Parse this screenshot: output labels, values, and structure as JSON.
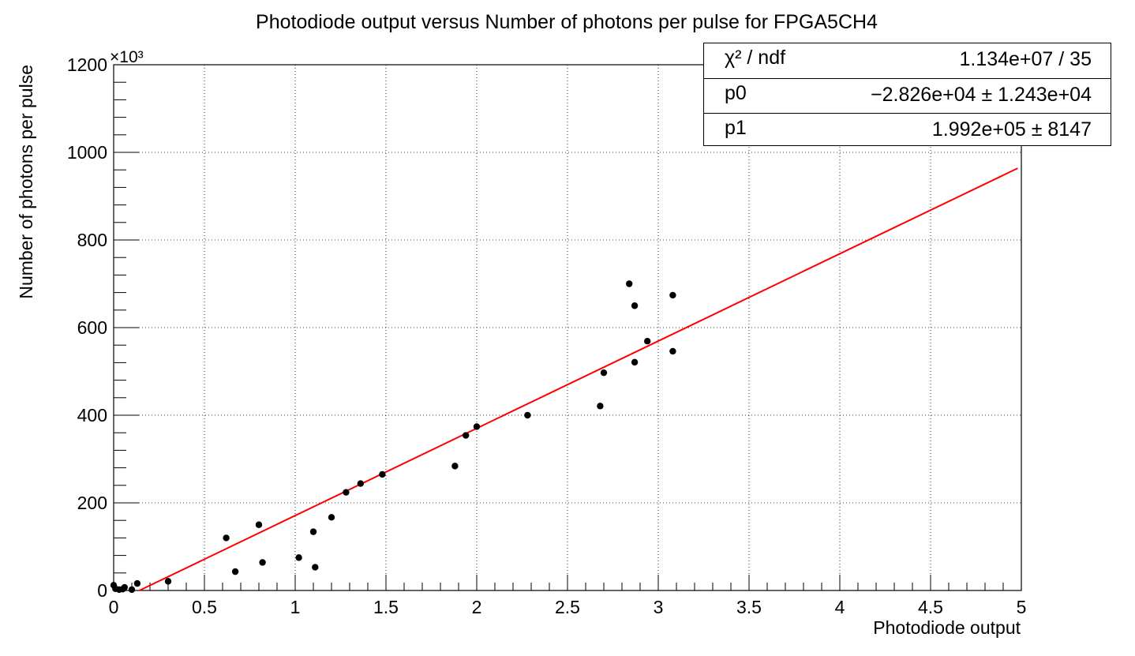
{
  "chart_data": {
    "type": "scatter",
    "title": "Photodiode output versus Number of photons per pulse for FPGA5CH4",
    "xlabel": "Photodiode output",
    "ylabel": "Number of photons per pulse",
    "y_exponent": "×10³",
    "xlim": [
      0,
      5
    ],
    "ylim": [
      0,
      1200
    ],
    "x_ticks": [
      "0",
      "0.5",
      "1",
      "1.5",
      "2",
      "2.5",
      "3",
      "3.5",
      "4",
      "4.5",
      "5"
    ],
    "y_ticks": [
      "0",
      "200",
      "400",
      "600",
      "800",
      "1000",
      "1200"
    ],
    "grid": true,
    "points": [
      {
        "x": 0.0,
        "y": 12
      },
      {
        "x": 0.01,
        "y": 4
      },
      {
        "x": 0.03,
        "y": 2
      },
      {
        "x": 0.05,
        "y": 3
      },
      {
        "x": 0.06,
        "y": 7
      },
      {
        "x": 0.1,
        "y": 2
      },
      {
        "x": 0.13,
        "y": 16
      },
      {
        "x": 0.3,
        "y": 21
      },
      {
        "x": 0.62,
        "y": 120
      },
      {
        "x": 0.67,
        "y": 43
      },
      {
        "x": 0.8,
        "y": 150
      },
      {
        "x": 0.82,
        "y": 64
      },
      {
        "x": 1.02,
        "y": 75
      },
      {
        "x": 1.1,
        "y": 134
      },
      {
        "x": 1.11,
        "y": 53
      },
      {
        "x": 1.2,
        "y": 167
      },
      {
        "x": 1.28,
        "y": 224
      },
      {
        "x": 1.36,
        "y": 244
      },
      {
        "x": 1.48,
        "y": 265
      },
      {
        "x": 1.88,
        "y": 284
      },
      {
        "x": 1.94,
        "y": 354
      },
      {
        "x": 2.0,
        "y": 374
      },
      {
        "x": 2.28,
        "y": 400
      },
      {
        "x": 2.68,
        "y": 421
      },
      {
        "x": 2.7,
        "y": 497
      },
      {
        "x": 2.84,
        "y": 700
      },
      {
        "x": 2.87,
        "y": 650
      },
      {
        "x": 2.87,
        "y": 521
      },
      {
        "x": 2.94,
        "y": 569
      },
      {
        "x": 3.08,
        "y": 674
      },
      {
        "x": 3.08,
        "y": 546
      }
    ],
    "fit": {
      "type": "line",
      "color": "#ff0000",
      "p0": -28.26,
      "p1": 199.2,
      "x_range": [
        0,
        4.98
      ]
    },
    "marker_color": "#000000",
    "legend_position": "top-right"
  },
  "stats": [
    {
      "name": "χ² / ndf",
      "value": "1.134e+07 / 35"
    },
    {
      "name": "p0",
      "value": "−2.826e+04 ± 1.243e+04"
    },
    {
      "name": "p1",
      "value": "1.992e+05 ±  8147"
    }
  ]
}
